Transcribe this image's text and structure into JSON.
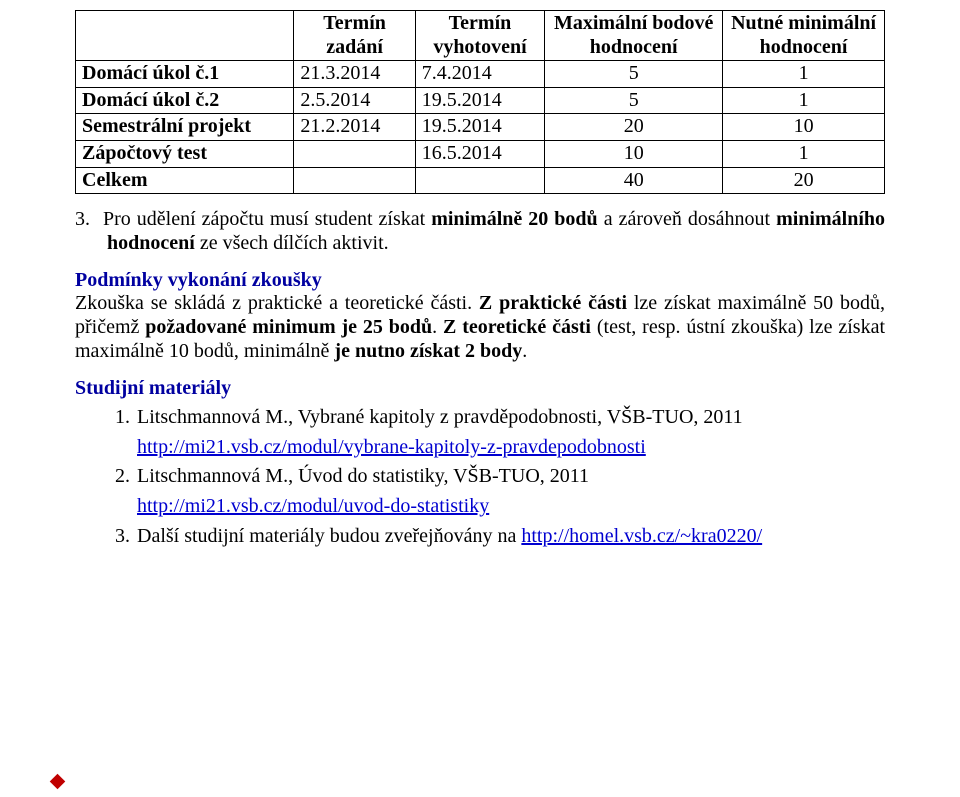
{
  "table": {
    "headers": [
      "",
      "Termín zadání",
      "Termín vyhotovení",
      "Maximální bodové hodnocení",
      "Nutné minimální hodnocení"
    ],
    "rows": [
      {
        "label": "Domácí úkol č.1",
        "c1": "21.3.2014",
        "c2": "7.4.2014",
        "c3": "5",
        "c4": "1"
      },
      {
        "label": "Domácí úkol č.2",
        "c1": "2.5.2014",
        "c2": "19.5.2014",
        "c3": "5",
        "c4": "1"
      },
      {
        "label": "Semestrální projekt",
        "c1": "21.2.2014",
        "c2": "19.5.2014",
        "c3": "20",
        "c4": "10"
      },
      {
        "label": "Zápočtový test",
        "c1": "",
        "c2": "16.5.2014",
        "c3": "10",
        "c4": "1"
      },
      {
        "label": "Celkem",
        "c1": "",
        "c2": "",
        "c3": "40",
        "c4": "20"
      }
    ]
  },
  "note3": {
    "num": "3.",
    "text_a": "Pro udělení zápočtu musí student získat ",
    "bold_a": "minimálně 20 bodů",
    "text_b": " a zároveň dosáhnout ",
    "bold_b": "minimálního hodnocení",
    "text_c": " ze všech dílčích aktivit."
  },
  "exam_h": "Podmínky vykonání zkoušky",
  "exam_body": {
    "t1": "Zkouška se skládá z praktické a teoretické části. ",
    "b1": "Z praktické části",
    "t2": " lze získat maximálně 50 bodů, přičemž ",
    "b2": "požadované minimum je 25 bodů",
    "t3": ". ",
    "b3": "Z teoretické části",
    "t4": " (test, resp. ústní zkouška) lze získat maximálně 10 bodů, minimálně ",
    "b4": "je nutno získat 2 body",
    "t5": "."
  },
  "materials_h": "Studijní materiály",
  "materials": {
    "i1": {
      "text": "Litschmannová M., Vybrané kapitoly z pravděpodobnosti, VŠB-TUO, 2011",
      "link": "http://mi21.vsb.cz/modul/vybrane-kapitoly-z-pravdepodobnosti"
    },
    "i2": {
      "text": "Litschmannová M., Úvod do statistiky, VŠB-TUO, 2011",
      "link": "http://mi21.vsb.cz/modul/uvod-do-statistiky"
    },
    "i3": {
      "text_a": "Další studijní materiály budou zveřejňovány na  ",
      "link": "http://homel.vsb.cz/~kra0220/"
    }
  }
}
